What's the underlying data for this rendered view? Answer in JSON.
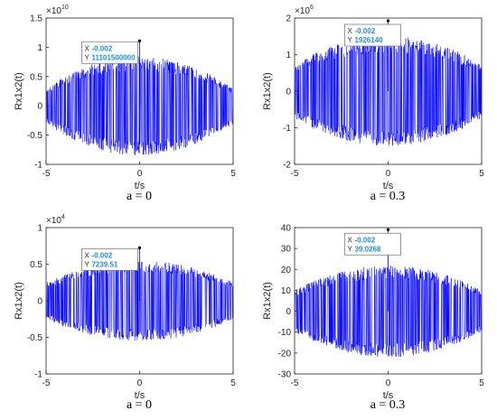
{
  "charts": [
    {
      "caption": "a = 0",
      "chart_data": {
        "type": "line",
        "xlabel": "t/s",
        "ylabel": "Rx1x2(t)",
        "xlim": [
          -5,
          5
        ],
        "ylim": [
          -1,
          1.5
        ],
        "xticks": [
          "-5",
          "0",
          "5"
        ],
        "yticks": [
          "-1",
          "-0.5",
          "0",
          "0.5",
          "1",
          "1.5"
        ],
        "exponent": "10",
        "exponent_power": "10",
        "peak_y": 1.11,
        "envelope_amplitude": 0.85,
        "base_amplitude": 0.3,
        "series": [
          {
            "color": "#0000ff",
            "description": "dense noise-like signal, envelope max at t = 0"
          }
        ],
        "datatip": {
          "x_label": "X",
          "x_value": "-0.002",
          "y_label": "Y",
          "y_value": "11101500000",
          "x": -0.002,
          "y": 1.11
        }
      }
    },
    {
      "caption": "a = 0.3",
      "chart_data": {
        "type": "line",
        "xlabel": "t/s",
        "ylabel": "Rx1x2(t)",
        "xlim": [
          -5,
          5
        ],
        "ylim": [
          -2,
          2
        ],
        "xticks": [
          "-5",
          "0",
          "5"
        ],
        "yticks": [
          "-2",
          "-1",
          "0",
          "1",
          "2"
        ],
        "exponent": "10",
        "exponent_power": "6",
        "peak_y": 1.926,
        "envelope_amplitude": 1.5,
        "base_amplitude": 0.75,
        "series": [
          {
            "color": "#0000ff",
            "description": "dense noise-like signal, envelope max at t = 0"
          }
        ],
        "datatip": {
          "x_label": "X",
          "x_value": "-0.002",
          "y_label": "Y",
          "y_value": "1926140",
          "x": -0.002,
          "y": 1.926
        }
      }
    },
    {
      "caption": "a = 0",
      "chart_data": {
        "type": "line",
        "xlabel": "t/s",
        "ylabel": "Rx1x2(t)",
        "xlim": [
          -5,
          5
        ],
        "ylim": [
          -1,
          1
        ],
        "xticks": [
          "-5",
          "0",
          "5"
        ],
        "yticks": [
          "-1",
          "-0.5",
          "0",
          "0.5",
          "1"
        ],
        "exponent": "10",
        "exponent_power": "4",
        "peak_y": 0.724,
        "envelope_amplitude": 0.55,
        "base_amplitude": 0.25,
        "series": [
          {
            "color": "#0000ff",
            "description": "dense noise-like signal, envelope max at t = 0"
          }
        ],
        "datatip": {
          "x_label": "X",
          "x_value": "-0.002",
          "y_label": "Y",
          "y_value": "7239.51",
          "x": -0.002,
          "y": 0.724
        }
      }
    },
    {
      "caption": "a = 0.3",
      "chart_data": {
        "type": "line",
        "xlabel": "t/s",
        "ylabel": "Rx1x2(t)",
        "xlim": [
          -5,
          5
        ],
        "ylim": [
          -30,
          40
        ],
        "xticks": [
          "-5",
          "0",
          "5"
        ],
        "yticks": [
          "-30",
          "-20",
          "-10",
          "0",
          "10",
          "20",
          "30",
          "40"
        ],
        "exponent": "",
        "exponent_power": "",
        "peak_y": 39.0268,
        "envelope_amplitude": 22,
        "base_amplitude": 10,
        "series": [
          {
            "color": "#0000ff",
            "description": "dense noise-like signal, envelope max at t = 0"
          }
        ],
        "datatip": {
          "x_label": "X",
          "x_value": "-0.002",
          "y_label": "Y",
          "y_value": "39.0268",
          "x": -0.002,
          "y": 39.0268
        }
      }
    }
  ]
}
